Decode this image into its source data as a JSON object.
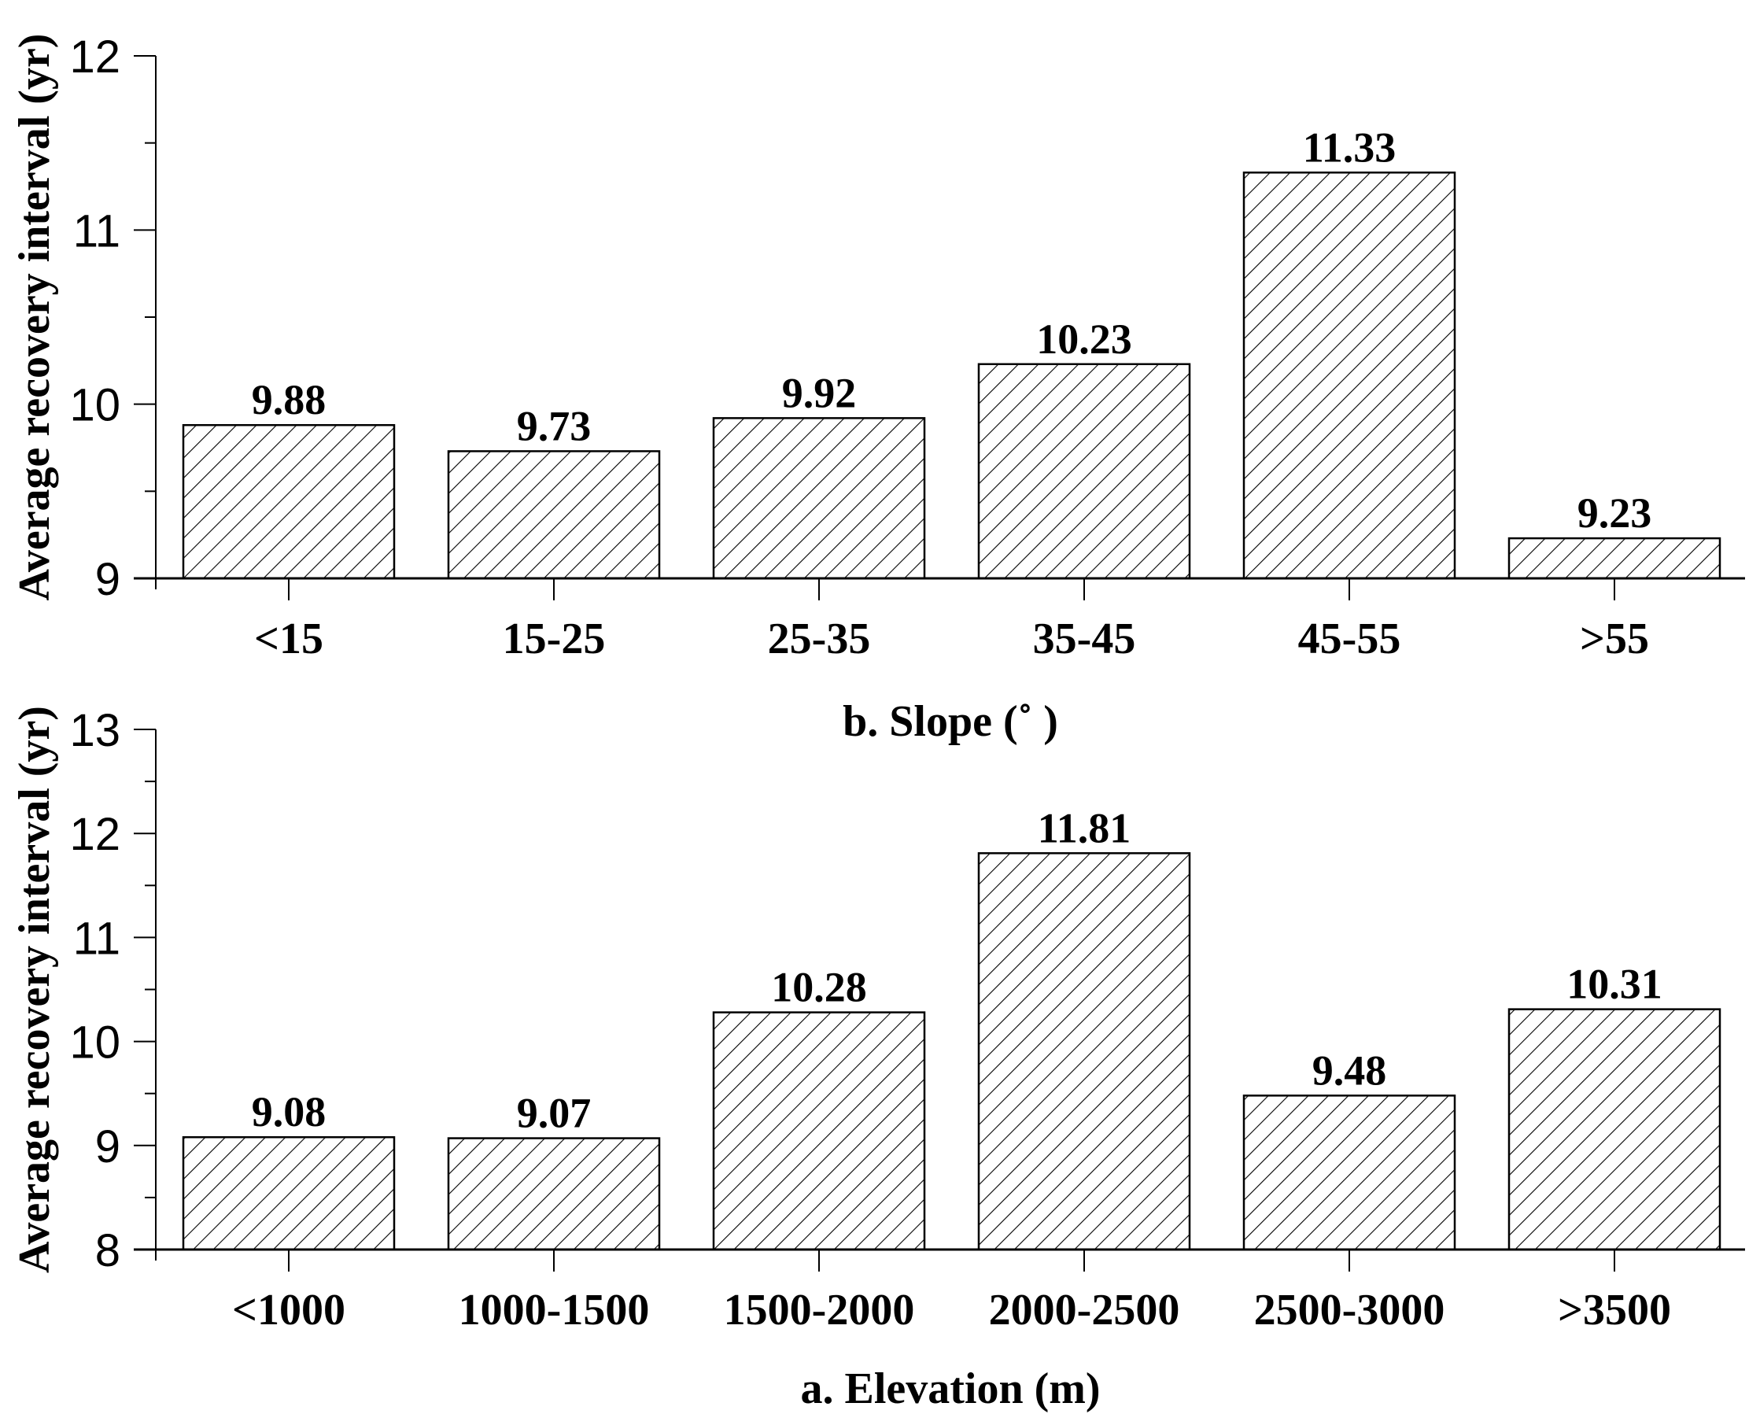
{
  "chart_data": [
    {
      "type": "bar",
      "xlabel": "b. Slope (˚ )",
      "ylabel": "Average recovery interval (yr)",
      "categories": [
        "<15",
        "15-25",
        "25-35",
        "35-45",
        "45-55",
        ">55"
      ],
      "values": [
        9.88,
        9.73,
        9.92,
        10.23,
        11.33,
        9.23
      ],
      "data_labels": [
        "9.88",
        "9.73",
        "9.92",
        "10.23",
        "11.33",
        "9.23"
      ],
      "ylim": [
        9,
        12
      ],
      "yticks": [
        "9",
        "10",
        "11",
        "12"
      ],
      "fill": "diagonal hatch",
      "grid": false
    },
    {
      "type": "bar",
      "xlabel": "a. Elevation (m)",
      "ylabel": "Average recovery interval (yr)",
      "categories": [
        "<1000",
        "1000-1500",
        "1500-2000",
        "2000-2500",
        "2500-3000",
        ">3500"
      ],
      "values": [
        9.08,
        9.07,
        10.28,
        11.81,
        9.48,
        10.31
      ],
      "data_labels": [
        "9.08",
        "9.07",
        "10.28",
        "11.81",
        "9.48",
        "10.31"
      ],
      "ylim": [
        8,
        13
      ],
      "yticks": [
        "8",
        "9",
        "10",
        "11",
        "12",
        "13"
      ],
      "fill": "diagonal hatch",
      "grid": false
    }
  ]
}
